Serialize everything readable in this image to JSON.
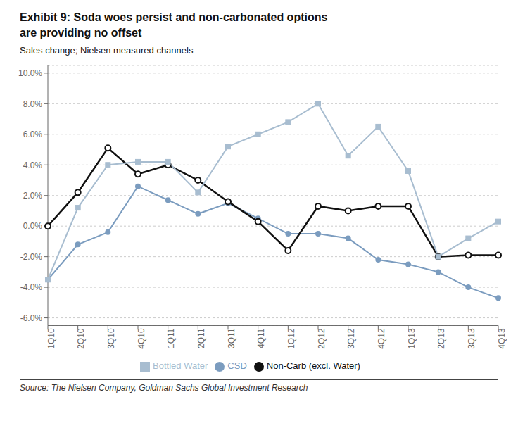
{
  "chart_data": {
    "type": "line",
    "title": "Exhibit 9: Soda woes persist and non-carbonated options\nare providing no offset",
    "subtitle": "Sales change; Nielsen measured channels",
    "source": "Source: The Nielsen Company, Goldman Sachs Global Investment Research",
    "categories": [
      "1Q10",
      "2Q10",
      "3Q10",
      "4Q10",
      "1Q11",
      "2Q11",
      "3Q11",
      "4Q11",
      "1Q12",
      "2Q12",
      "3Q12",
      "4Q12",
      "1Q13",
      "2Q13",
      "3Q13",
      "4Q13"
    ],
    "series": [
      {
        "name": "CSD",
        "color": "#7b9cbf",
        "marker": "circle",
        "line_style": "solid",
        "values": [
          -0.035,
          -0.012,
          -0.004,
          0.026,
          0.017,
          0.008,
          0.015,
          0.005,
          -0.005,
          -0.005,
          -0.008,
          -0.022,
          -0.025,
          -0.03,
          -0.04,
          -0.047
        ]
      },
      {
        "name": "Non-Carb (excl. Water)",
        "color": "#111111",
        "marker": "open_circle",
        "line_style": "solid",
        "values": [
          0.0,
          0.022,
          0.051,
          0.034,
          0.04,
          0.03,
          0.016,
          0.003,
          -0.016,
          0.013,
          0.01,
          0.013,
          0.013,
          -0.02,
          -0.019,
          -0.019
        ]
      },
      {
        "name": "Bottled Water",
        "color": "#a8bdd0",
        "marker": "square",
        "line_style": "solid",
        "values": [
          -0.035,
          0.012,
          0.04,
          0.042,
          0.042,
          0.022,
          0.052,
          0.06,
          0.068,
          0.08,
          0.046,
          0.065,
          0.036,
          -0.02,
          -0.008,
          0.003
        ]
      }
    ],
    "ylim": [
      -0.065,
      0.105
    ],
    "yticks": [
      {
        "value": -0.06,
        "label": "-6.0%"
      },
      {
        "value": -0.04,
        "label": "-4.0%"
      },
      {
        "value": -0.02,
        "label": "-2.0%"
      },
      {
        "value": 0.0,
        "label": "0.0%"
      },
      {
        "value": 0.02,
        "label": "2.0%"
      },
      {
        "value": 0.04,
        "label": "4.0%"
      },
      {
        "value": 0.06,
        "label": "6.0%"
      },
      {
        "value": 0.08,
        "label": "8.0%"
      },
      {
        "value": 0.1,
        "label": "10.0%"
      }
    ],
    "grid": true,
    "legend": "bottom"
  }
}
